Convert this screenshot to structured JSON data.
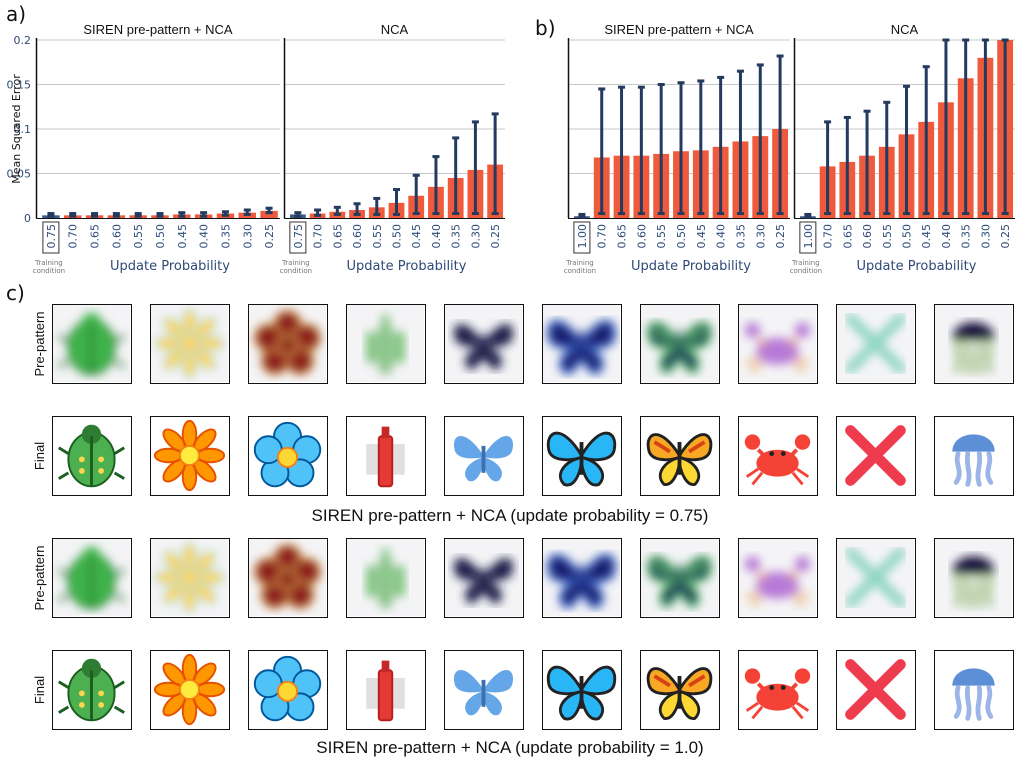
{
  "figure": {
    "labels": {
      "a": "a)",
      "b": "b)",
      "c": "c)"
    },
    "rows": {
      "prepattern": "Pre-pattern",
      "final": "Final"
    },
    "captions": [
      "SIREN pre-pattern + NCA (update probability = 0.75)",
      "SIREN pre-pattern + NCA (update probability = 1.0)"
    ],
    "training_note": "Training\ncondition",
    "emojis": [
      "beetle",
      "orange-flower",
      "blue-flower",
      "red-bottle",
      "light-butterfly",
      "blue-butterfly",
      "monarch-butterfly",
      "crab",
      "cross",
      "jellyfish"
    ],
    "colors": {
      "bar": "#ef5a3c",
      "errorbar": "#243a5e",
      "grid": "#c8c8c8",
      "axis_text": "#2e4a78"
    }
  },
  "chart_data": [
    {
      "type": "bar",
      "panel": "a",
      "title": "SIREN pre-pattern + NCA",
      "xlabel": "Update Probability",
      "ylabel": "Mean Squared Error",
      "ylim": [
        0,
        0.2
      ],
      "yticks": [
        "0",
        "0.05",
        "0.1",
        "0.15",
        "0.2"
      ],
      "categories": [
        "0.75",
        "0.70",
        "0.65",
        "0.60",
        "0.55",
        "0.50",
        "0.45",
        "0.40",
        "0.35",
        "0.30",
        "0.25"
      ],
      "training_index": 0,
      "values": [
        0.003,
        0.003,
        0.003,
        0.003,
        0.003,
        0.003,
        0.004,
        0.004,
        0.005,
        0.006,
        0.008
      ],
      "err_low": [
        0.002,
        0.002,
        0.002,
        0.002,
        0.002,
        0.002,
        0.002,
        0.002,
        0.003,
        0.004,
        0.006
      ],
      "err_high": [
        0.005,
        0.005,
        0.005,
        0.005,
        0.005,
        0.005,
        0.006,
        0.006,
        0.007,
        0.009,
        0.011
      ],
      "grid": true
    },
    {
      "type": "bar",
      "panel": "a",
      "title": "NCA",
      "xlabel": "Update Probability",
      "ylim": [
        0,
        0.2
      ],
      "categories": [
        "0.75",
        "0.70",
        "0.65",
        "0.60",
        "0.55",
        "0.50",
        "0.45",
        "0.40",
        "0.35",
        "0.30",
        "0.25"
      ],
      "training_index": 0,
      "values": [
        0.004,
        0.005,
        0.007,
        0.009,
        0.012,
        0.017,
        0.025,
        0.035,
        0.045,
        0.054,
        0.06
      ],
      "err_low": [
        0.002,
        0.003,
        0.004,
        0.004,
        0.004,
        0.004,
        0.005,
        0.005,
        0.005,
        0.005,
        0.005
      ],
      "err_high": [
        0.006,
        0.009,
        0.012,
        0.016,
        0.022,
        0.032,
        0.048,
        0.069,
        0.09,
        0.108,
        0.117
      ],
      "grid": true
    },
    {
      "type": "bar",
      "panel": "b",
      "title": "SIREN pre-pattern + NCA",
      "xlabel": "Update Probability",
      "ylim": [
        0,
        0.2
      ],
      "categories": [
        "1.00",
        "0.70",
        "0.65",
        "0.60",
        "0.55",
        "0.50",
        "0.45",
        "0.40",
        "0.35",
        "0.30",
        "0.25"
      ],
      "training_index": 0,
      "values": [
        0.002,
        0.068,
        0.07,
        0.07,
        0.072,
        0.075,
        0.076,
        0.08,
        0.086,
        0.092,
        0.1
      ],
      "err_low": [
        0.001,
        0.005,
        0.005,
        0.005,
        0.005,
        0.005,
        0.005,
        0.005,
        0.005,
        0.005,
        0.005
      ],
      "err_high": [
        0.004,
        0.145,
        0.147,
        0.147,
        0.15,
        0.152,
        0.154,
        0.158,
        0.165,
        0.172,
        0.182
      ],
      "grid": true
    },
    {
      "type": "bar",
      "panel": "b",
      "title": "NCA",
      "xlabel": "Update Probability",
      "ylim": [
        0,
        0.2
      ],
      "categories": [
        "1.00",
        "0.70",
        "0.65",
        "0.60",
        "0.55",
        "0.50",
        "0.45",
        "0.40",
        "0.35",
        "0.30",
        "0.25"
      ],
      "training_index": 0,
      "values": [
        0.002,
        0.058,
        0.063,
        0.07,
        0.08,
        0.094,
        0.108,
        0.13,
        0.157,
        0.18,
        0.2
      ],
      "err_low": [
        0.001,
        0.005,
        0.005,
        0.005,
        0.005,
        0.005,
        0.005,
        0.005,
        0.005,
        0.005,
        0.005
      ],
      "err_high": [
        0.004,
        0.108,
        0.113,
        0.12,
        0.13,
        0.148,
        0.17,
        0.2,
        0.2,
        0.2,
        0.2
      ],
      "grid": true
    }
  ]
}
